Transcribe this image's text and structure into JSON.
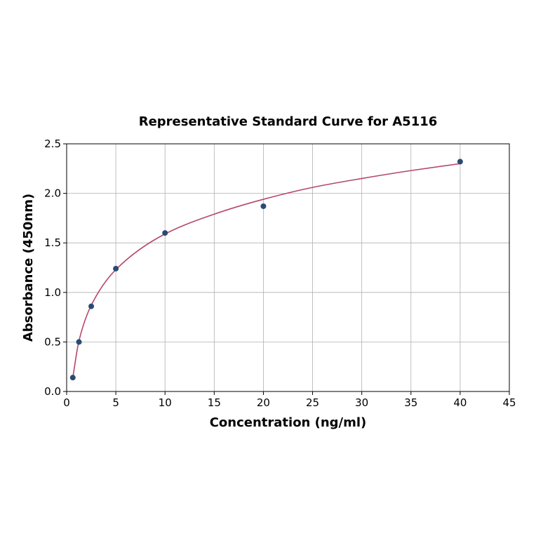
{
  "chart_data": {
    "type": "scatter",
    "title": "Representative Standard Curve for A5116",
    "xlabel": "Concentration (ng/ml)",
    "ylabel": "Absorbance (450nm)",
    "xlim": [
      0,
      45
    ],
    "ylim": [
      0,
      2.5
    ],
    "xticks": [
      0,
      5,
      10,
      15,
      20,
      25,
      30,
      35,
      40,
      45
    ],
    "yticks": [
      0.0,
      0.5,
      1.0,
      1.5,
      2.0,
      2.5
    ],
    "xtick_labels": [
      "0",
      "5",
      "10",
      "15",
      "20",
      "25",
      "30",
      "35",
      "40",
      "45"
    ],
    "ytick_labels": [
      "0.0",
      "0.5",
      "1.0",
      "1.5",
      "2.0",
      "2.5"
    ],
    "grid": true,
    "series": [
      {
        "points": [
          {
            "x": 0.625,
            "y": 0.14
          },
          {
            "x": 1.25,
            "y": 0.5
          },
          {
            "x": 2.5,
            "y": 0.86
          },
          {
            "x": 5,
            "y": 1.24
          },
          {
            "x": 10,
            "y": 1.6
          },
          {
            "x": 20,
            "y": 1.87
          },
          {
            "x": 40,
            "y": 2.32
          }
        ],
        "color": "#2b4a73"
      }
    ],
    "fit_curve": {
      "color": "#b5476a",
      "x_range": [
        0.625,
        40
      ],
      "points": [
        {
          "x": 0.625,
          "y": 0.14
        },
        {
          "x": 1.25,
          "y": 0.51
        },
        {
          "x": 2.5,
          "y": 0.87
        },
        {
          "x": 5,
          "y": 1.23
        },
        {
          "x": 10,
          "y": 1.59
        },
        {
          "x": 15,
          "y": 1.79
        },
        {
          "x": 20,
          "y": 1.94
        },
        {
          "x": 25,
          "y": 2.06
        },
        {
          "x": 30,
          "y": 2.15
        },
        {
          "x": 35,
          "y": 2.23
        },
        {
          "x": 40,
          "y": 2.3
        }
      ]
    }
  }
}
